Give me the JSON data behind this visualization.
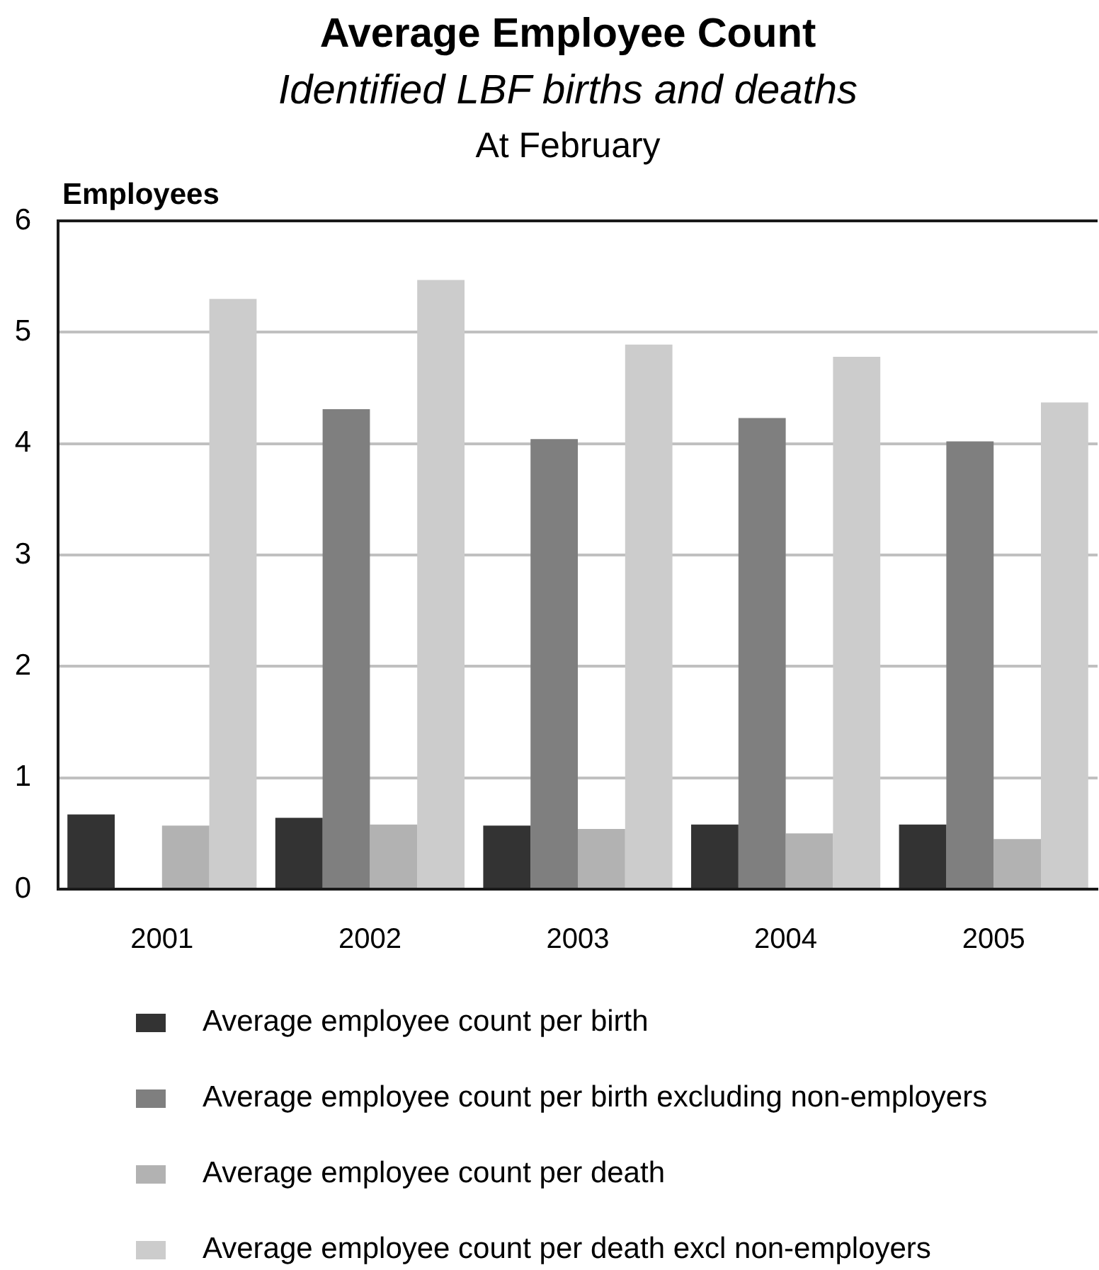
{
  "chart_data": {
    "type": "bar",
    "title": "Average Employee Count",
    "subtitle": "Identified LBF births and deaths",
    "annotations": [
      "At February"
    ],
    "ylabel": "Employees",
    "categories": [
      "2001",
      "2002",
      "2003",
      "2004",
      "2005"
    ],
    "series": [
      {
        "name": "Average employee count per birth",
        "color": "#333333",
        "values": [
          0.67,
          0.64,
          0.57,
          0.58,
          0.58
        ]
      },
      {
        "name": "Average employee count per birth excluding non-employers",
        "color": "#7f7f7f",
        "values": [
          null,
          4.31,
          4.04,
          4.23,
          4.02
        ]
      },
      {
        "name": "Average employee count per death",
        "color": "#b2b2b2",
        "values": [
          0.57,
          0.58,
          0.54,
          0.5,
          0.45
        ]
      },
      {
        "name": "Average employee count per death excl non-employers",
        "color": "#cccccc",
        "values": [
          5.3,
          5.47,
          4.89,
          4.78,
          4.37
        ]
      }
    ],
    "ylim": [
      0,
      6
    ],
    "yticks": [
      0,
      1,
      2,
      3,
      4,
      5,
      6
    ],
    "grid": "y",
    "legend": "bottom"
  }
}
